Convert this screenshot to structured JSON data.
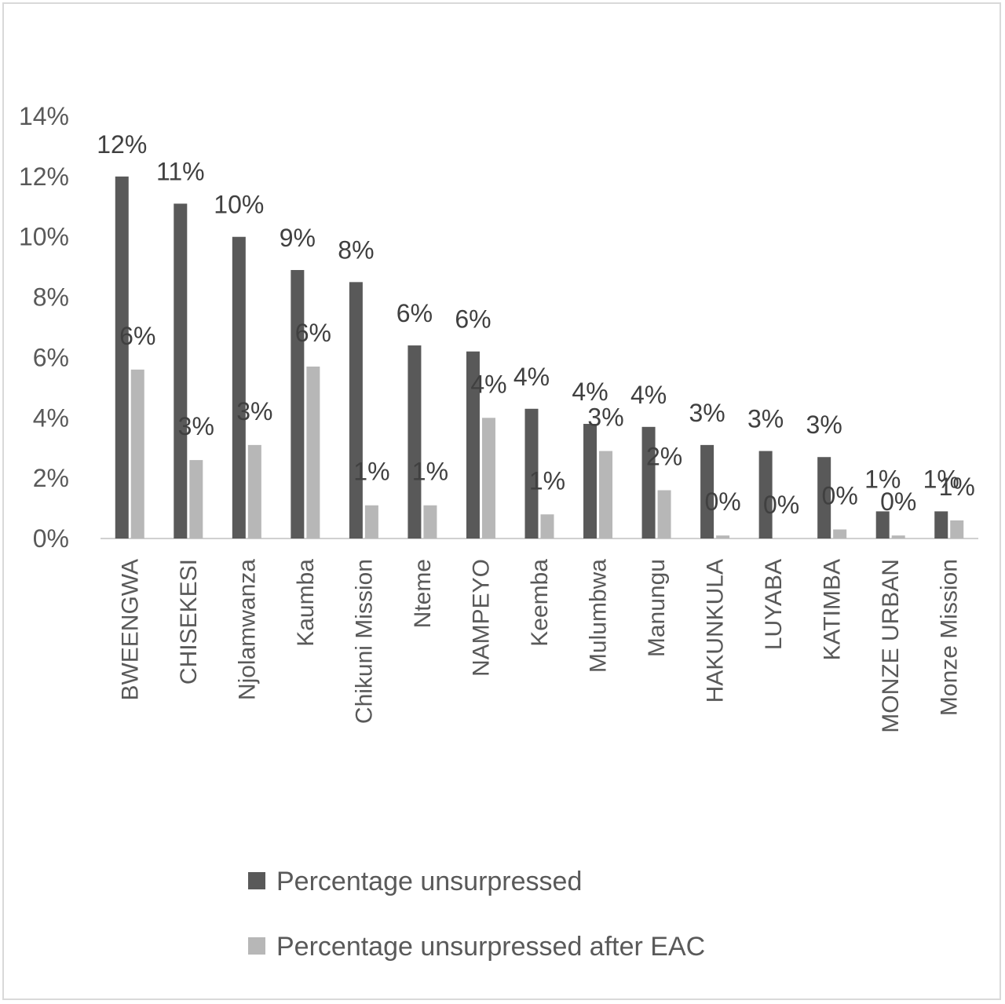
{
  "chart_data": {
    "type": "bar",
    "title": "",
    "xlabel": "",
    "ylabel": "",
    "ylim": [
      0,
      14
    ],
    "yticks": [
      "0%",
      "2%",
      "4%",
      "6%",
      "8%",
      "10%",
      "12%",
      "14%"
    ],
    "grid": false,
    "legend_position": "bottom",
    "categories": [
      "BWEENGWA",
      "CHISEKESI",
      "Njolamwanza",
      "Kaumba",
      "Chikuni Mission",
      "Nteme",
      "NAMPEYO",
      "Keemba",
      "Mulumbwa",
      "Manungu",
      "HAKUNKULA",
      "LUYABA",
      "KATIMBA",
      "MONZE URBAN",
      "Monze Mission"
    ],
    "series": [
      {
        "name": "Percentage unsurpressed",
        "color": "#595959",
        "values": [
          12.0,
          11.1,
          10.0,
          8.9,
          8.5,
          6.4,
          6.2,
          4.3,
          3.8,
          3.7,
          3.1,
          2.9,
          2.7,
          0.9,
          0.9
        ],
        "labels": [
          "12%",
          "11%",
          "10%",
          "9%",
          "8%",
          "6%",
          "6%",
          "4%",
          "4%",
          "4%",
          "3%",
          "3%",
          "3%",
          "1%",
          "1%"
        ]
      },
      {
        "name": "Percentage unsurpressed after EAC",
        "color": "#b7b7b7",
        "values": [
          5.6,
          2.6,
          3.1,
          5.7,
          1.1,
          1.1,
          4.0,
          0.8,
          2.9,
          1.6,
          0.1,
          0.0,
          0.3,
          0.1,
          0.6
        ],
        "labels": [
          "6%",
          "3%",
          "3%",
          "6%",
          "1%",
          "1%",
          "4%",
          "1%",
          "3%",
          "2%",
          "0%",
          "0%",
          "0%",
          "0%",
          "1%"
        ]
      }
    ]
  }
}
